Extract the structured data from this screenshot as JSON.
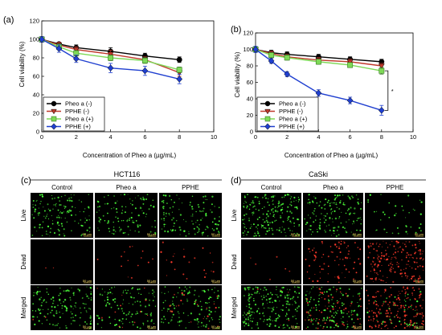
{
  "chart_data": [
    {
      "panel": "(a)",
      "type": "line",
      "xlabel": "Concentration of Pheo a (µg/mL)",
      "ylabel": "Cell viability (%)",
      "xlim": [
        0,
        10
      ],
      "ylim": [
        0,
        120
      ],
      "xticks": [
        0,
        2,
        4,
        6,
        8,
        10
      ],
      "yticks": [
        0,
        20,
        40,
        60,
        80,
        100,
        120
      ],
      "x": [
        0,
        1,
        2,
        4,
        6,
        8
      ],
      "legend_position": "bottom-left",
      "series": [
        {
          "name": "Pheo a (-)",
          "color": "#000000",
          "marker": "circle",
          "values": [
            100,
            95,
            91,
            87,
            82,
            78
          ],
          "err": [
            2,
            2,
            3,
            4,
            3,
            3
          ]
        },
        {
          "name": "PPHE (-)",
          "color": "#c0392b",
          "marker": "triangle-down",
          "values": [
            100,
            94,
            89,
            84,
            78,
            64
          ],
          "err": [
            3,
            3,
            3,
            4,
            3,
            4
          ]
        },
        {
          "name": "Pheo a (+)",
          "color": "#7ed957",
          "marker": "square",
          "values": [
            100,
            92,
            85,
            80,
            77,
            67
          ],
          "err": [
            3,
            3,
            3,
            3,
            3,
            3
          ]
        },
        {
          "name": "PPHE (+)",
          "color": "#1f3fd0",
          "marker": "diamond",
          "values": [
            100,
            90,
            79,
            69,
            66,
            57
          ],
          "err": [
            3,
            4,
            4,
            5,
            5,
            5
          ]
        }
      ]
    },
    {
      "panel": "(b)",
      "type": "line",
      "xlabel": "Concentration of Pheo a (µg/mL)",
      "ylabel": "Cell viability (%)",
      "xlim": [
        0,
        10
      ],
      "ylim": [
        0,
        120
      ],
      "xticks": [
        0,
        2,
        4,
        6,
        8,
        10
      ],
      "yticks": [
        0,
        20,
        40,
        60,
        80,
        100,
        120
      ],
      "x": [
        0,
        1,
        2,
        4,
        6,
        8
      ],
      "legend_position": "bottom-left",
      "significance": "*",
      "series": [
        {
          "name": "Pheo a (-)",
          "color": "#000000",
          "marker": "circle",
          "values": [
            100,
            96,
            94,
            91,
            88,
            85
          ],
          "err": [
            3,
            3,
            3,
            3,
            3,
            3
          ]
        },
        {
          "name": "PPHE (-)",
          "color": "#c0392b",
          "marker": "triangle-down",
          "values": [
            100,
            95,
            91,
            87,
            85,
            80
          ],
          "err": [
            3,
            3,
            3,
            3,
            3,
            3
          ]
        },
        {
          "name": "Pheo a (+)",
          "color": "#7ed957",
          "marker": "square",
          "values": [
            100,
            93,
            90,
            85,
            81,
            74
          ],
          "err": [
            3,
            3,
            3,
            3,
            3,
            4
          ]
        },
        {
          "name": "PPHE (+)",
          "color": "#1f3fd0",
          "marker": "diamond",
          "values": [
            100,
            86,
            70,
            47,
            38,
            26
          ],
          "err": [
            4,
            3,
            3,
            4,
            4,
            6
          ]
        }
      ]
    }
  ],
  "micrographs": [
    {
      "panel": "(c)",
      "title": "HCT116",
      "columns": [
        "Control",
        "Pheo a",
        "PPHE"
      ],
      "rows": [
        "Live",
        "Dead",
        "Merged"
      ],
      "scale_label": "50 μm"
    },
    {
      "panel": "(d)",
      "title": "CaSki",
      "columns": [
        "Control",
        "Pheo a",
        "PPHE"
      ],
      "rows": [
        "Live",
        "Dead",
        "Merged"
      ],
      "scale_label": "50 μm"
    }
  ]
}
